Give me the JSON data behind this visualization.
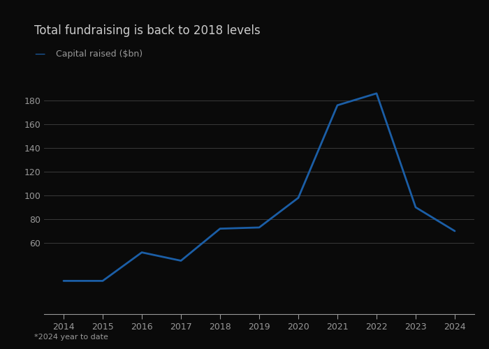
{
  "title": "Total fundraising is back to 2018 levels",
  "legend_label": "Capital raised ($bn)",
  "footnote": "*2024 year to date",
  "years": [
    2014,
    2015,
    2016,
    2017,
    2018,
    2019,
    2020,
    2021,
    2022,
    2023,
    2024
  ],
  "values": [
    28,
    28,
    52,
    45,
    72,
    73,
    98,
    176,
    186,
    90,
    70
  ],
  "line_color": "#1b5ea6",
  "line_width": 2.0,
  "ylim": [
    0,
    200
  ],
  "yticks": [
    60,
    80,
    100,
    120,
    140,
    160,
    180
  ],
  "xlim": [
    2013.5,
    2024.5
  ],
  "bg_color": "#0a0a0a",
  "plot_bg_color": "#0a0a0a",
  "grid_color": "#3a3a3a",
  "text_color": "#999999",
  "title_color": "#cccccc",
  "line_label_color": "#999999",
  "title_fontsize": 12,
  "label_fontsize": 9,
  "tick_fontsize": 9,
  "footnote_fontsize": 8
}
